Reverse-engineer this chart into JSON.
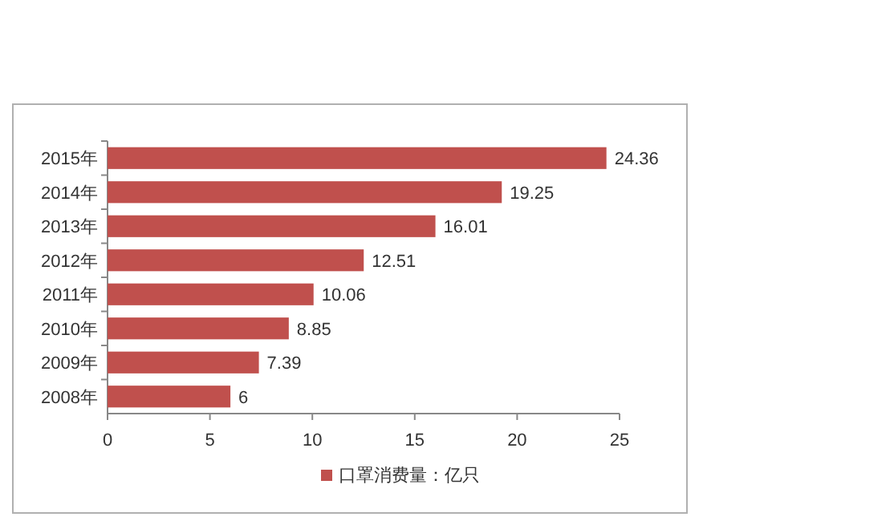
{
  "chart_data": {
    "type": "bar",
    "orientation": "horizontal",
    "categories": [
      "2015年",
      "2014年",
      "2013年",
      "2012年",
      "2011年",
      "2010年",
      "2009年",
      "2008年"
    ],
    "series": [
      {
        "name": "口罩消费量：亿只",
        "color": "#c0504d",
        "values": [
          24.36,
          19.25,
          16.01,
          12.51,
          10.06,
          8.85,
          7.39,
          6
        ]
      }
    ],
    "xlim": [
      0,
      25
    ],
    "xticks": [
      0,
      5,
      10,
      15,
      20,
      25
    ],
    "data_labels": true,
    "legend": "bottom"
  }
}
